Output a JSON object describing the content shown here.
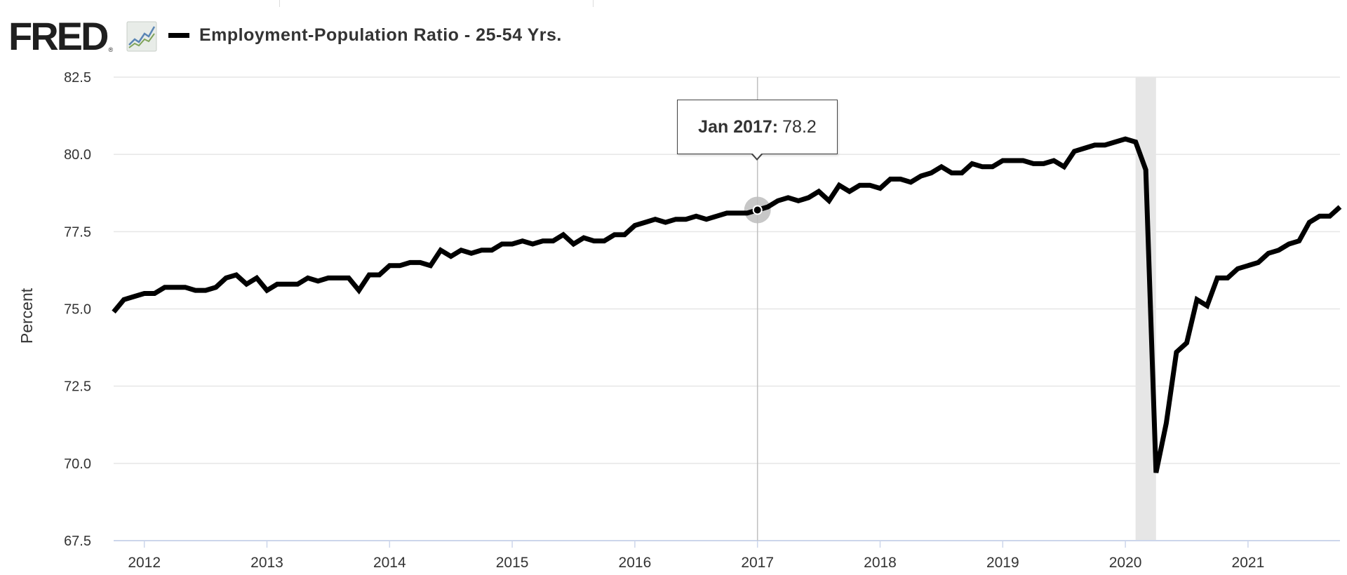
{
  "header": {
    "logo_text": "FRED",
    "logo_mark": "®",
    "logo_icon": "line-graph-icon",
    "legend_label": "Employment-Population Ratio - 25-54 Yrs."
  },
  "tooltip": {
    "label": "Jan 2017:",
    "value": "78.2"
  },
  "colors": {
    "series": "#000000",
    "grid": "#e6e6e6",
    "recession": "#e6e6e6",
    "crosshair": "#c0c0c0",
    "hover_halo": "#bdbdbd"
  },
  "chart_data": {
    "type": "line",
    "title": "",
    "xlabel": "",
    "ylabel": "Percent",
    "ylim": [
      67.5,
      82.5
    ],
    "yticks": [
      "82.5",
      "80.0",
      "77.5",
      "75.0",
      "72.5",
      "70.0",
      "67.5"
    ],
    "xticks": [
      "2012",
      "2013",
      "2014",
      "2015",
      "2016",
      "2017",
      "2018",
      "2019",
      "2020",
      "2021"
    ],
    "grid": true,
    "legend": "top-left",
    "x_start": "2011-10",
    "x_end": "2021-10",
    "frequency": "monthly",
    "recession": [
      "2020-02",
      "2020-04"
    ],
    "hover": {
      "x": "2017-01",
      "y": 78.2
    },
    "series": [
      {
        "name": "Employment-Population Ratio - 25-54 Yrs.",
        "values": [
          74.9,
          75.3,
          75.4,
          75.5,
          75.5,
          75.7,
          75.7,
          75.7,
          75.6,
          75.6,
          75.7,
          76.0,
          76.1,
          75.8,
          76.0,
          75.6,
          75.8,
          75.8,
          75.8,
          76.0,
          75.9,
          76.0,
          76.0,
          76.0,
          75.6,
          76.1,
          76.1,
          76.4,
          76.4,
          76.5,
          76.5,
          76.4,
          76.9,
          76.7,
          76.9,
          76.8,
          76.9,
          76.9,
          77.1,
          77.1,
          77.2,
          77.1,
          77.2,
          77.2,
          77.4,
          77.1,
          77.3,
          77.2,
          77.2,
          77.4,
          77.4,
          77.7,
          77.8,
          77.9,
          77.8,
          77.9,
          77.9,
          78.0,
          77.9,
          78.0,
          78.1,
          78.1,
          78.1,
          78.2,
          78.3,
          78.5,
          78.6,
          78.5,
          78.6,
          78.8,
          78.5,
          79.0,
          78.8,
          79.0,
          79.0,
          78.9,
          79.2,
          79.2,
          79.1,
          79.3,
          79.4,
          79.6,
          79.4,
          79.4,
          79.7,
          79.6,
          79.6,
          79.8,
          79.8,
          79.8,
          79.7,
          79.7,
          79.8,
          79.6,
          80.1,
          80.2,
          80.3,
          80.3,
          80.4,
          80.5,
          80.4,
          79.5,
          69.7,
          71.3,
          73.6,
          73.9,
          75.3,
          75.1,
          76.0,
          76.0,
          76.3,
          76.4,
          76.5,
          76.8,
          76.9,
          77.1,
          77.2,
          77.8,
          78.0,
          78.0,
          78.3
        ]
      }
    ]
  }
}
